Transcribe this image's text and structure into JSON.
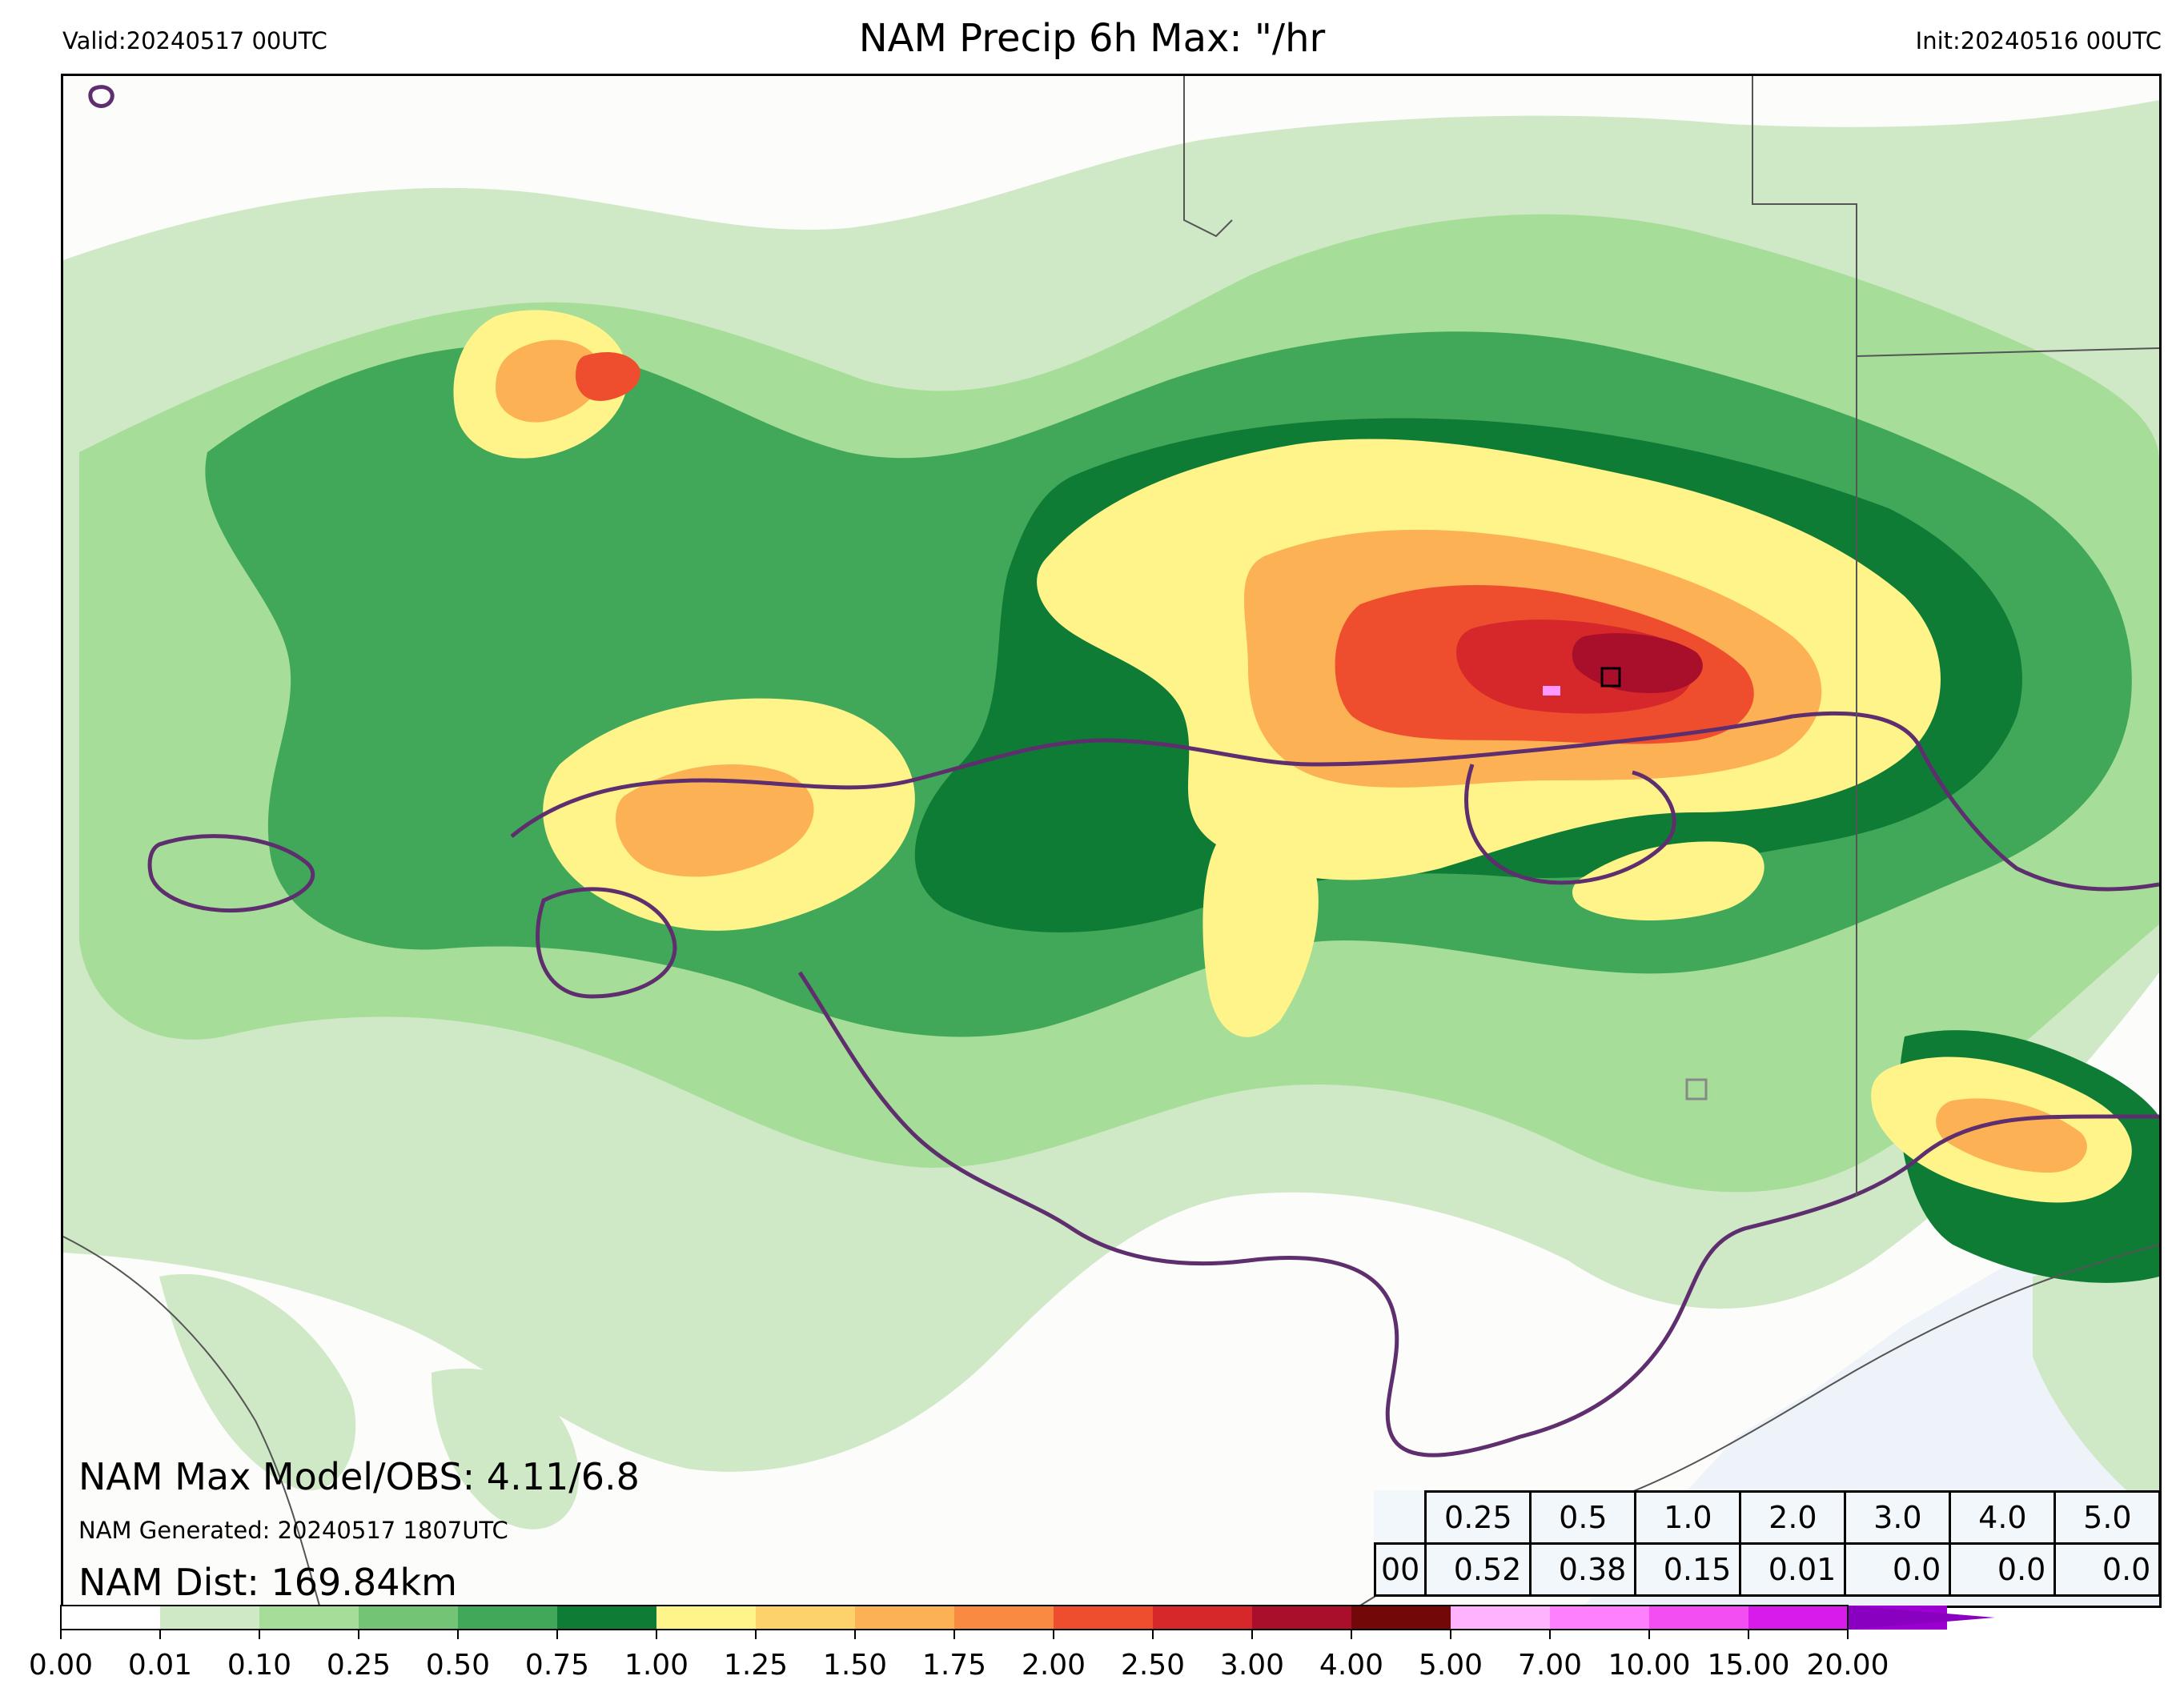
{
  "header": {
    "valid": "Valid:20240517 00UTC",
    "title": "NAM Precip 6h Max: \"/hr",
    "init": "Init:20240516 00UTC"
  },
  "info": {
    "max_line": "NAM Max Model/OBS: 4.11/6.8",
    "generated_line": "NAM Generated: 20240517 1807UTC",
    "dist_line": "NAM Dist: 169.84km"
  },
  "stats_table": {
    "thresholds": [
      "0.25",
      "0.5",
      "1.0",
      "2.0",
      "3.0",
      "4.0",
      "5.0"
    ],
    "row_label": "00",
    "values": [
      "0.52",
      "0.38",
      "0.15",
      "0.01",
      "0.0",
      "0.0",
      "0.0"
    ]
  },
  "colorbar": {
    "tick_labels": [
      "0.00",
      "0.01",
      "0.10",
      "0.25",
      "0.50",
      "0.75",
      "1.00",
      "1.25",
      "1.50",
      "1.75",
      "2.00",
      "2.50",
      "3.00",
      "4.00",
      "5.00",
      "7.00",
      "10.00",
      "15.00",
      "20.00"
    ],
    "colors": [
      "#ffffff",
      "#cfe8c5",
      "#a6dd98",
      "#74c476",
      "#41a85a",
      "#0e7c35",
      "#fff48a",
      "#fdd26a",
      "#fdb155",
      "#f88a42",
      "#ef4e2e",
      "#d6282a",
      "#a90f2a",
      "#720808",
      "#ffb3ff",
      "#ff80ff",
      "#f24ef2",
      "#d81bea",
      "#9c00d0"
    ],
    "extend_color": "#8a00c0"
  },
  "map_colors": {
    "land": "#fcfcfa",
    "water": "#eef3fa",
    "region_outline": "#5e2e6e",
    "border": "#555555",
    "marker_max": "#ff99ff",
    "marker_box": "#000000"
  }
}
